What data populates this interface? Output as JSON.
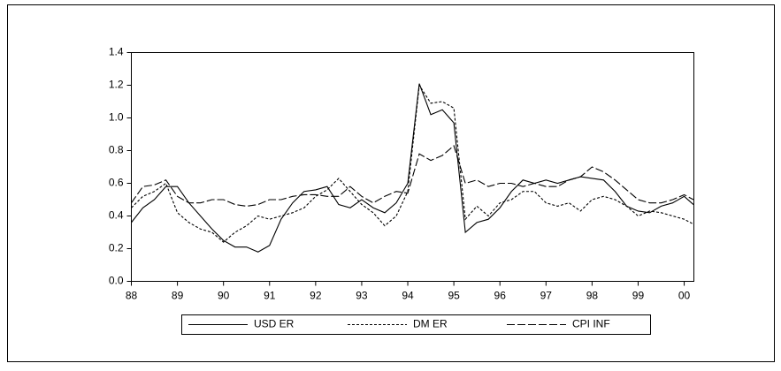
{
  "chart_data": {
    "type": "line",
    "x": [
      1988,
      1988.25,
      1988.5,
      1988.75,
      1989,
      1989.25,
      1989.5,
      1989.75,
      1990,
      1990.25,
      1990.5,
      1990.75,
      1991,
      1991.25,
      1991.5,
      1991.75,
      1992,
      1992.25,
      1992.5,
      1992.75,
      1993,
      1993.25,
      1993.5,
      1993.75,
      1994,
      1994.25,
      1994.5,
      1994.75,
      1995,
      1995.25,
      1995.5,
      1995.75,
      1996,
      1996.25,
      1996.5,
      1996.75,
      1997,
      1997.25,
      1997.5,
      1997.75,
      1998,
      1998.25,
      1998.5,
      1998.75,
      1999,
      1999.25,
      1999.5,
      1999.75,
      2000,
      2000.2
    ],
    "series": [
      {
        "name": "USD ER",
        "color": "#000000",
        "dash": "solid",
        "values": [
          0.36,
          0.45,
          0.5,
          0.58,
          0.58,
          0.48,
          0.4,
          0.32,
          0.25,
          0.21,
          0.21,
          0.18,
          0.22,
          0.38,
          0.48,
          0.55,
          0.56,
          0.58,
          0.47,
          0.45,
          0.5,
          0.45,
          0.42,
          0.48,
          0.6,
          1.21,
          1.02,
          1.05,
          0.97,
          0.3,
          0.36,
          0.38,
          0.45,
          0.55,
          0.62,
          0.6,
          0.62,
          0.6,
          0.62,
          0.64,
          0.63,
          0.62,
          0.55,
          0.46,
          0.43,
          0.42,
          0.46,
          0.48,
          0.52,
          0.47
        ]
      },
      {
        "name": "DM ER",
        "color": "#000000",
        "dash": "short",
        "values": [
          0.45,
          0.52,
          0.55,
          0.6,
          0.42,
          0.36,
          0.32,
          0.3,
          0.24,
          0.3,
          0.34,
          0.4,
          0.38,
          0.4,
          0.42,
          0.45,
          0.52,
          0.56,
          0.63,
          0.55,
          0.47,
          0.42,
          0.34,
          0.4,
          0.55,
          1.2,
          1.09,
          1.1,
          1.06,
          0.38,
          0.46,
          0.4,
          0.48,
          0.5,
          0.55,
          0.55,
          0.48,
          0.46,
          0.48,
          0.43,
          0.5,
          0.52,
          0.5,
          0.46,
          0.4,
          0.43,
          0.42,
          0.4,
          0.38,
          0.35
        ]
      },
      {
        "name": "CPI INF",
        "color": "#000000",
        "dash": "long",
        "values": [
          0.48,
          0.58,
          0.59,
          0.62,
          0.52,
          0.48,
          0.48,
          0.5,
          0.5,
          0.47,
          0.46,
          0.47,
          0.5,
          0.5,
          0.52,
          0.53,
          0.53,
          0.52,
          0.52,
          0.58,
          0.52,
          0.48,
          0.52,
          0.55,
          0.54,
          0.78,
          0.74,
          0.77,
          0.83,
          0.6,
          0.62,
          0.58,
          0.6,
          0.6,
          0.58,
          0.6,
          0.58,
          0.58,
          0.62,
          0.64,
          0.7,
          0.67,
          0.62,
          0.56,
          0.5,
          0.48,
          0.48,
          0.5,
          0.53,
          0.5
        ]
      }
    ],
    "xlim": [
      1988,
      2000.21
    ],
    "xticks": [
      {
        "value": 1988,
        "label": "88"
      },
      {
        "value": 1989,
        "label": "89"
      },
      {
        "value": 1990,
        "label": "90"
      },
      {
        "value": 1991,
        "label": "91"
      },
      {
        "value": 1992,
        "label": "92"
      },
      {
        "value": 1993,
        "label": "93"
      },
      {
        "value": 1994,
        "label": "94"
      },
      {
        "value": 1995,
        "label": "95"
      },
      {
        "value": 1996,
        "label": "96"
      },
      {
        "value": 1997,
        "label": "97"
      },
      {
        "value": 1998,
        "label": "98"
      },
      {
        "value": 1999,
        "label": "99"
      },
      {
        "value": 2000,
        "label": "00"
      }
    ],
    "ylim": [
      0,
      1.4
    ],
    "yticks": [
      {
        "value": 0,
        "label": "0.0"
      },
      0.2,
      0.4,
      0.6,
      0.8,
      {
        "value": 1,
        "label": "1.0"
      },
      1.2,
      1.4
    ],
    "grid": false,
    "legend": "bottom"
  }
}
